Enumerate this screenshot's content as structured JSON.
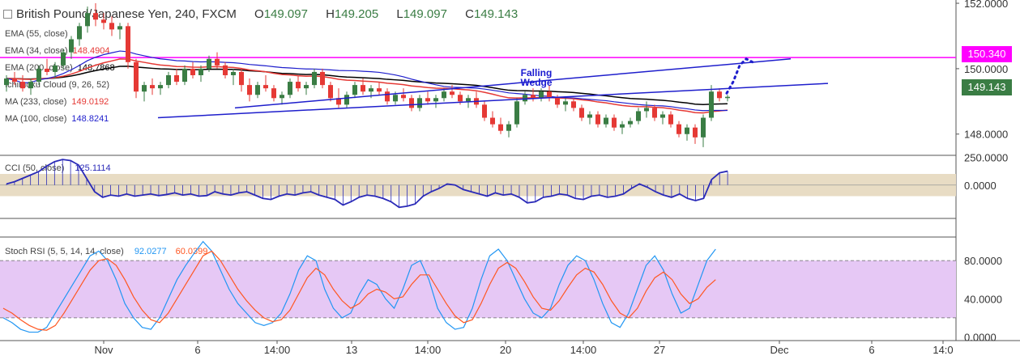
{
  "header": {
    "symbol": "British Pound/Japanese Yen, 240, FXCM",
    "o_label": "O",
    "o": "149.097",
    "h_label": "H",
    "h": "149.205",
    "l_label": "L",
    "l": "149.097",
    "c_label": "C",
    "c": "149.143"
  },
  "legend": [
    {
      "name": "EMA (55, close)",
      "value": "",
      "color": "#888888"
    },
    {
      "name": "EMA (34, close)",
      "value": "148.4904",
      "color": "#e53935"
    },
    {
      "name": "EMA (200, close)",
      "value": "148.7868",
      "color": "#000000"
    },
    {
      "name": "Ichimoku Cloud (9, 26, 52)",
      "value": "",
      "color": "#888888"
    },
    {
      "name": "MA (233, close)",
      "value": "149.0192",
      "color": "#e53935"
    },
    {
      "name": "MA (100, close)",
      "value": "148.8241",
      "color": "#1e1ecc"
    }
  ],
  "colors": {
    "up": "#3a7d44",
    "down": "#e53935",
    "ema34": "#e53935",
    "ema200": "#000000",
    "ma100": "#1e1ecc",
    "wedge": "#1e1ecc",
    "resistance": "#ff00ff",
    "cci": "#2a2ab8",
    "stoch_k": "#2196f3",
    "stoch_d": "#ff5722",
    "cci_band": "#e8dcc4",
    "stoch_band": "#e6c8f5"
  },
  "annotations": {
    "wedge_label_1": "Falling",
    "wedge_label_2": "Wedge",
    "resistance_level": "150.340",
    "last_price": "149.143"
  },
  "cci_legend": {
    "name": "CCI (50, close)",
    "value": "125.1114"
  },
  "stoch_legend": {
    "name": "Stoch RSI (5, 5, 14, 14, close)",
    "k": "92.0277",
    "d": "60.0399"
  },
  "chart_data": [
    {
      "type": "candlestick",
      "title": "British Pound/Japanese Yen, 240, FXCM",
      "price_axis_ticks": [
        "152.0000",
        "150.0000",
        "148.0000"
      ],
      "ylim": [
        147.4,
        152.1
      ],
      "x_tick_labels": [
        "Nov",
        "6",
        "14:00",
        "13",
        "14:00",
        "20",
        "14:00",
        "27",
        "Dec",
        "6",
        "14:0"
      ],
      "resistance": 150.34,
      "last_close": 149.143,
      "wedge_upper": [
        [
          148.8,
          150.3
        ],
        [
          149.9,
          149.5
        ]
      ],
      "wedge_lower": [
        [
          148.5,
          149.55
        ],
        [
          147.7,
          147.85
        ]
      ],
      "projection": [
        149.25,
        149.6,
        150.1,
        150.3,
        150.2
      ],
      "candles": [
        [
          149.5,
          149.8,
          149.3,
          149.7
        ],
        [
          149.7,
          149.9,
          149.5,
          149.6
        ],
        [
          149.6,
          149.8,
          149.3,
          149.4
        ],
        [
          149.4,
          149.7,
          149.2,
          149.6
        ],
        [
          149.6,
          150.1,
          149.5,
          150.0
        ],
        [
          150.0,
          150.3,
          149.8,
          149.9
        ],
        [
          149.9,
          150.2,
          149.7,
          150.1
        ],
        [
          150.1,
          150.6,
          150.0,
          150.5
        ],
        [
          150.5,
          151.0,
          150.3,
          150.9
        ],
        [
          150.9,
          151.4,
          150.7,
          151.3
        ],
        [
          151.3,
          151.9,
          151.1,
          151.7
        ],
        [
          151.7,
          152.0,
          151.3,
          151.5
        ],
        [
          151.5,
          151.7,
          151.2,
          151.4
        ],
        [
          151.4,
          151.6,
          151.0,
          151.2
        ],
        [
          151.2,
          151.4,
          150.9,
          151.3
        ],
        [
          151.3,
          151.4,
          150.0,
          150.2
        ],
        [
          150.2,
          150.3,
          149.1,
          149.3
        ],
        [
          149.3,
          149.6,
          149.0,
          149.5
        ],
        [
          149.5,
          149.7,
          149.2,
          149.4
        ],
        [
          149.4,
          149.6,
          149.2,
          149.5
        ],
        [
          149.5,
          149.9,
          149.4,
          149.8
        ],
        [
          149.8,
          150.0,
          149.5,
          149.6
        ],
        [
          149.6,
          150.1,
          149.5,
          150.0
        ],
        [
          150.0,
          150.2,
          149.7,
          149.8
        ],
        [
          149.8,
          150.1,
          149.6,
          150.0
        ],
        [
          150.0,
          150.4,
          149.9,
          150.3
        ],
        [
          150.3,
          150.5,
          150.0,
          150.1
        ],
        [
          150.1,
          150.2,
          149.7,
          149.8
        ],
        [
          149.8,
          150.0,
          149.5,
          149.9
        ],
        [
          149.9,
          150.0,
          149.3,
          149.5
        ],
        [
          149.5,
          149.7,
          149.0,
          149.2
        ],
        [
          149.2,
          149.6,
          149.1,
          149.5
        ],
        [
          149.5,
          149.8,
          149.3,
          149.4
        ],
        [
          149.4,
          149.5,
          149.0,
          149.1
        ],
        [
          149.1,
          149.3,
          148.9,
          149.2
        ],
        [
          149.2,
          149.7,
          149.1,
          149.6
        ],
        [
          149.6,
          149.8,
          149.3,
          149.4
        ],
        [
          149.4,
          149.6,
          149.2,
          149.5
        ],
        [
          149.5,
          150.0,
          149.4,
          149.9
        ],
        [
          149.9,
          150.0,
          149.4,
          149.5
        ],
        [
          149.5,
          149.6,
          149.0,
          149.1
        ],
        [
          149.1,
          149.4,
          148.8,
          148.9
        ],
        [
          148.9,
          149.3,
          148.8,
          149.2
        ],
        [
          149.2,
          149.6,
          149.1,
          149.5
        ],
        [
          149.5,
          149.7,
          149.2,
          149.3
        ],
        [
          149.3,
          149.5,
          149.1,
          149.4
        ],
        [
          149.4,
          149.6,
          149.2,
          149.3
        ],
        [
          149.3,
          149.4,
          148.9,
          149.0
        ],
        [
          149.0,
          149.3,
          148.9,
          149.2
        ],
        [
          149.2,
          149.4,
          149.0,
          149.1
        ],
        [
          149.1,
          149.2,
          148.7,
          148.8
        ],
        [
          148.8,
          149.2,
          148.7,
          149.1
        ],
        [
          149.1,
          149.3,
          148.9,
          149.0
        ],
        [
          149.0,
          149.2,
          148.8,
          149.1
        ],
        [
          149.1,
          149.4,
          149.0,
          149.3
        ],
        [
          149.3,
          149.5,
          149.1,
          149.2
        ],
        [
          149.2,
          149.3,
          148.9,
          149.0
        ],
        [
          149.0,
          149.2,
          148.8,
          149.1
        ],
        [
          149.1,
          149.3,
          148.8,
          148.9
        ],
        [
          148.9,
          149.0,
          148.4,
          148.5
        ],
        [
          148.5,
          148.7,
          148.2,
          148.3
        ],
        [
          148.3,
          148.5,
          148.0,
          148.1
        ],
        [
          148.1,
          148.4,
          147.9,
          148.3
        ],
        [
          148.3,
          149.1,
          148.2,
          149.0
        ],
        [
          149.0,
          149.3,
          148.9,
          149.2
        ],
        [
          149.2,
          149.4,
          149.0,
          149.1
        ],
        [
          149.1,
          149.4,
          149.0,
          149.3
        ],
        [
          149.3,
          149.5,
          149.0,
          149.1
        ],
        [
          149.1,
          149.2,
          148.8,
          148.9
        ],
        [
          148.9,
          149.1,
          148.7,
          149.0
        ],
        [
          149.0,
          149.1,
          148.7,
          148.8
        ],
        [
          148.8,
          148.9,
          148.4,
          148.5
        ],
        [
          148.5,
          148.7,
          148.3,
          148.6
        ],
        [
          148.6,
          148.7,
          148.2,
          148.3
        ],
        [
          148.3,
          148.6,
          148.2,
          148.5
        ],
        [
          148.5,
          148.6,
          148.1,
          148.2
        ],
        [
          148.2,
          148.4,
          148.0,
          148.3
        ],
        [
          148.3,
          148.5,
          148.2,
          148.4
        ],
        [
          148.4,
          148.8,
          148.3,
          148.7
        ],
        [
          148.7,
          149.0,
          148.5,
          148.8
        ],
        [
          148.8,
          148.9,
          148.4,
          148.5
        ],
        [
          148.5,
          148.7,
          148.3,
          148.6
        ],
        [
          148.6,
          148.7,
          148.2,
          148.3
        ],
        [
          148.3,
          148.4,
          147.9,
          148.0
        ],
        [
          148.0,
          148.3,
          147.8,
          148.2
        ],
        [
          148.2,
          148.3,
          147.7,
          147.9
        ],
        [
          147.9,
          148.6,
          147.6,
          148.5
        ],
        [
          148.5,
          149.5,
          148.4,
          149.3
        ],
        [
          149.3,
          149.4,
          149.0,
          149.1
        ],
        [
          149.1,
          149.2,
          149.0,
          149.14
        ]
      ]
    },
    {
      "type": "line",
      "title": "CCI (50, close)",
      "ylim": [
        -300,
        260
      ],
      "y_tick_labels": [
        "250.0000",
        "0.0000"
      ],
      "band": [
        -100,
        100
      ],
      "last": 125.1114,
      "values": [
        10,
        30,
        60,
        90,
        120,
        170,
        210,
        230,
        220,
        180,
        60,
        -60,
        -110,
        -90,
        -100,
        -80,
        -100,
        -90,
        -80,
        -95,
        -85,
        -70,
        -90,
        -80,
        -100,
        -95,
        -60,
        -80,
        -90,
        -70,
        -60,
        -90,
        -120,
        -130,
        -100,
        -80,
        -90,
        -70,
        -60,
        -90,
        -110,
        -130,
        -180,
        -150,
        -110,
        -90,
        -100,
        -120,
        -150,
        -200,
        -190,
        -170,
        -100,
        -60,
        -30,
        10,
        0,
        -40,
        -60,
        -80,
        -100,
        -70,
        -90,
        -80,
        -110,
        -160,
        -150,
        -110,
        -100,
        -80,
        -90,
        -120,
        -130,
        -100,
        -90,
        -110,
        -100,
        -80,
        -30,
        10,
        -20,
        -60,
        -90,
        -110,
        -80,
        -120,
        -140,
        -120,
        50,
        110,
        125
      ]
    },
    {
      "type": "line",
      "title": "Stoch RSI (5, 5, 14, 14, close)",
      "ylim": [
        -3,
        103
      ],
      "y_tick_labels": [
        "80.0000",
        "40.0000",
        "0.0000"
      ],
      "band": [
        20,
        80
      ],
      "series": [
        {
          "name": "",
          "values": [
            20,
            15,
            8,
            5,
            5,
            10,
            25,
            40,
            55,
            70,
            85,
            90,
            80,
            60,
            35,
            20,
            10,
            8,
            20,
            40,
            60,
            75,
            88,
            100,
            90,
            70,
            50,
            35,
            25,
            15,
            12,
            15,
            25,
            45,
            70,
            85,
            80,
            50,
            30,
            20,
            25,
            45,
            60,
            55,
            40,
            30,
            50,
            75,
            80,
            60,
            30,
            15,
            8,
            10,
            30,
            60,
            85,
            92,
            80,
            60,
            40,
            25,
            20,
            30,
            55,
            75,
            85,
            80,
            60,
            35,
            15,
            10,
            25,
            50,
            75,
            85,
            70,
            45,
            25,
            30,
            55,
            80,
            92
          ]
        },
        {
          "name": "",
          "values": [
            30,
            25,
            18,
            12,
            8,
            7,
            12,
            25,
            40,
            55,
            70,
            80,
            82,
            75,
            60,
            42,
            28,
            18,
            15,
            25,
            40,
            55,
            70,
            85,
            90,
            80,
            65,
            50,
            38,
            28,
            20,
            16,
            18,
            28,
            45,
            62,
            72,
            65,
            50,
            38,
            30,
            35,
            45,
            50,
            47,
            40,
            42,
            55,
            65,
            65,
            50,
            35,
            22,
            15,
            18,
            35,
            55,
            72,
            78,
            72,
            58,
            42,
            30,
            28,
            38,
            52,
            65,
            72,
            68,
            55,
            38,
            25,
            20,
            30,
            48,
            62,
            68,
            60,
            45,
            35,
            40,
            52,
            60
          ]
        }
      ]
    }
  ]
}
